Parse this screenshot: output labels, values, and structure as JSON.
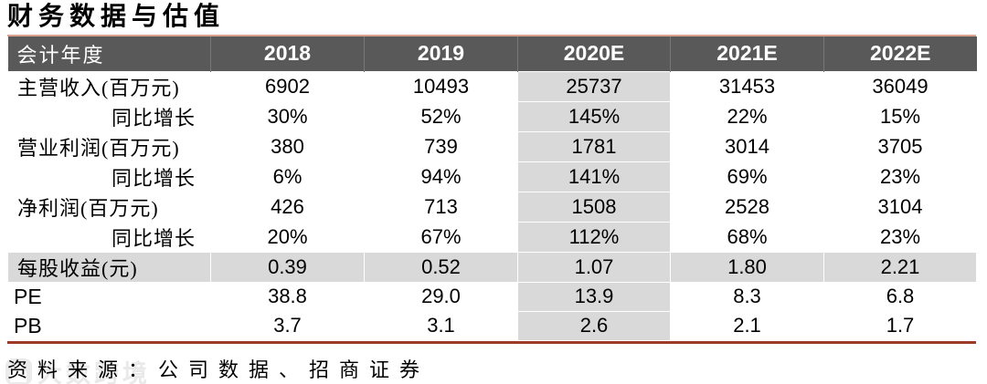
{
  "page": {
    "title": "财务数据与估值"
  },
  "table": {
    "columns": [
      "会计年度",
      "2018",
      "2019",
      "2020E",
      "2021E",
      "2022E"
    ],
    "highlight_column": "2020E",
    "rows": [
      {
        "label": "主营收入(百万元)",
        "label_align": "left",
        "values": [
          "6902",
          "10493",
          "25737",
          "31453",
          "36049"
        ]
      },
      {
        "label": "同比增长",
        "label_align": "right",
        "values": [
          "30%",
          "52%",
          "145%",
          "22%",
          "15%"
        ]
      },
      {
        "label": "营业利润(百万元)",
        "label_align": "left",
        "values": [
          "380",
          "739",
          "1781",
          "3014",
          "3705"
        ]
      },
      {
        "label": "同比增长",
        "label_align": "right",
        "values": [
          "6%",
          "94%",
          "141%",
          "69%",
          "23%"
        ]
      },
      {
        "label": "净利润(百万元)",
        "label_align": "left",
        "values": [
          "426",
          "713",
          "1508",
          "2528",
          "3104"
        ]
      },
      {
        "label": "同比增长",
        "label_align": "right",
        "values": [
          "20%",
          "67%",
          "112%",
          "68%",
          "23%"
        ]
      },
      {
        "label": "每股收益(元)",
        "label_align": "left",
        "highlight_row": true,
        "values": [
          "0.39",
          "0.52",
          "1.07",
          "1.80",
          "2.21"
        ]
      },
      {
        "label": "PE",
        "label_align": "left",
        "latin": true,
        "values": [
          "38.8",
          "29.0",
          "13.9",
          "8.3",
          "6.8"
        ]
      },
      {
        "label": "PB",
        "label_align": "left",
        "latin": true,
        "values": [
          "3.7",
          "3.1",
          "2.6",
          "2.1",
          "1.7"
        ]
      }
    ]
  },
  "footer": {
    "source_text": "资料来源：公司数据、招商证券"
  },
  "watermark": {
    "logo": "rounded-square-logo",
    "text": "大数跨境"
  },
  "colors": {
    "header_bg": "#595959",
    "header_text": "#ffffff",
    "column_highlight": "#d9d9d9",
    "top_line": "#dca28c",
    "bottom_line": "#9c3a26",
    "body_text": "#000000"
  }
}
